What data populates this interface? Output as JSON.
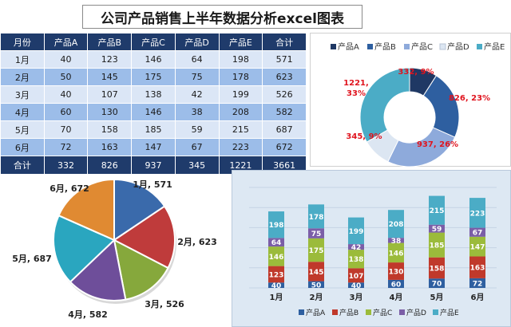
{
  "title": "公司产品销售上半年数据分析excel图表",
  "table": {
    "headers": [
      "月份",
      "产品A",
      "产品B",
      "产品C",
      "产品D",
      "产品E",
      "合计"
    ],
    "rows": [
      [
        "1月",
        "40",
        "123",
        "146",
        "64",
        "198",
        "571"
      ],
      [
        "2月",
        "50",
        "145",
        "175",
        "75",
        "178",
        "623"
      ],
      [
        "3月",
        "40",
        "107",
        "138",
        "42",
        "199",
        "526"
      ],
      [
        "4月",
        "60",
        "130",
        "146",
        "38",
        "208",
        "582"
      ],
      [
        "5月",
        "70",
        "158",
        "185",
        "59",
        "215",
        "687"
      ],
      [
        "6月",
        "72",
        "163",
        "147",
        "67",
        "223",
        "672"
      ]
    ],
    "totals": [
      "合计",
      "332",
      "826",
      "937",
      "345",
      "1221",
      "3661"
    ]
  },
  "chart_data": [
    {
      "type": "donut",
      "legend_position": "top",
      "labels": [
        "产品A",
        "产品B",
        "产品C",
        "产品D",
        "产品E"
      ],
      "values": [
        332,
        826,
        937,
        345,
        1221
      ],
      "data_labels": [
        "332, 9%",
        "826, 23%",
        "937, 26%",
        "345, 9%",
        "1221, 33%"
      ],
      "colors": [
        "#1f3864",
        "#2e5fa0",
        "#8eaadb",
        "#dce6f2",
        "#4bacc6"
      ],
      "label_color": "#e0141e"
    },
    {
      "type": "pie",
      "labels": [
        "1月",
        "2月",
        "3月",
        "4月",
        "5月",
        "6月"
      ],
      "values": [
        571,
        623,
        526,
        582,
        687,
        672
      ],
      "data_labels": [
        "1月, 571",
        "2月, 623",
        "3月, 526",
        "4月, 582",
        "5月, 687",
        "6月, 672"
      ],
      "colors": [
        "#3a6aab",
        "#bf3b3b",
        "#86a83c",
        "#6e4e9a",
        "#2aa6bf",
        "#e08a32"
      ]
    },
    {
      "type": "bar",
      "stacked": true,
      "categories": [
        "1月",
        "2月",
        "3月",
        "4月",
        "5月",
        "6月"
      ],
      "series": [
        {
          "name": "产品A",
          "values": [
            40,
            50,
            40,
            60,
            70,
            72
          ],
          "color": "#2e5fa0"
        },
        {
          "name": "产品B",
          "values": [
            123,
            145,
            107,
            130,
            158,
            163
          ],
          "color": "#c0392b"
        },
        {
          "name": "产品C",
          "values": [
            146,
            175,
            138,
            146,
            185,
            147
          ],
          "color": "#9bbb3b"
        },
        {
          "name": "产品D",
          "values": [
            64,
            75,
            42,
            38,
            59,
            67
          ],
          "color": "#7b5ea7"
        },
        {
          "name": "产品E",
          "values": [
            198,
            178,
            199,
            208,
            215,
            223
          ],
          "color": "#4bacc6"
        }
      ],
      "ylim": [
        0,
        750
      ],
      "grid": true,
      "legend_position": "bottom"
    }
  ]
}
